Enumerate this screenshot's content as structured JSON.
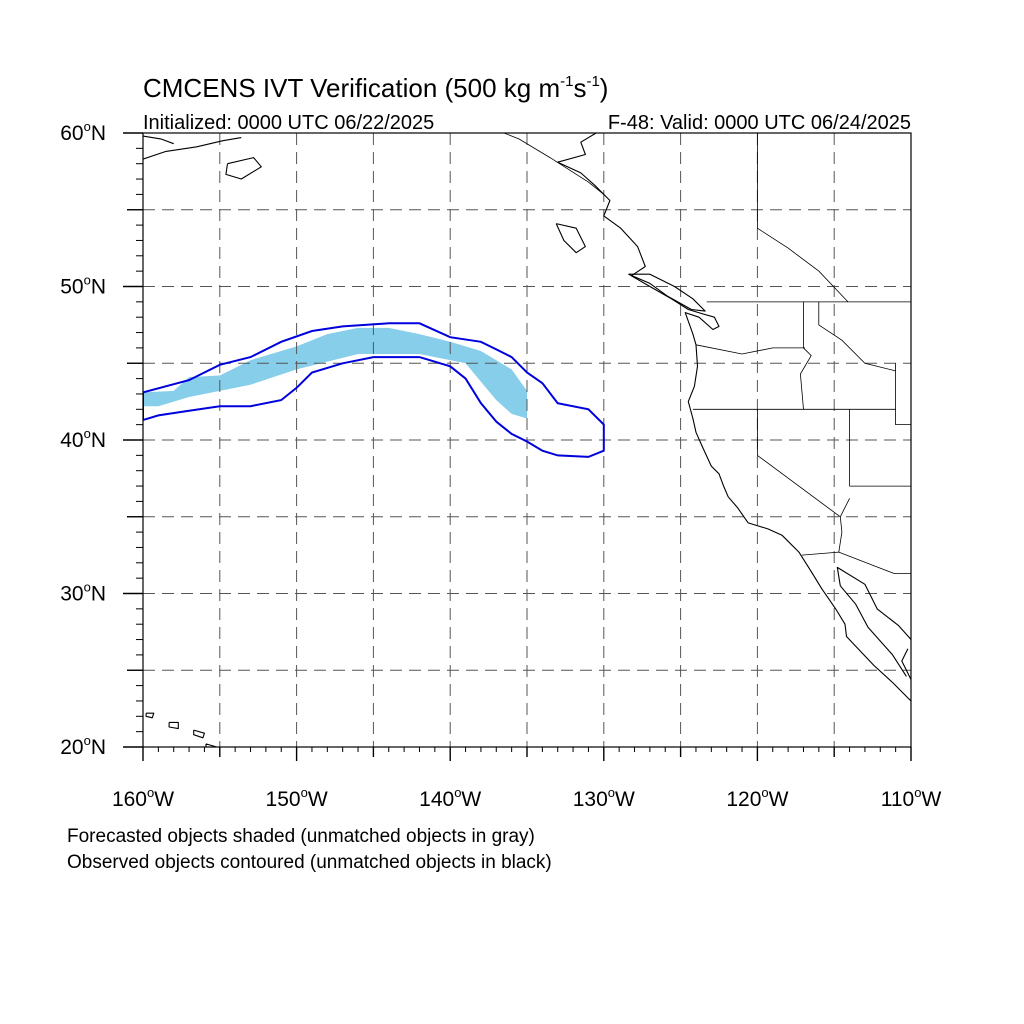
{
  "title": {
    "main": "CMCENS IVT Verification (500 kg m",
    "exp1": "-1",
    "mid": "s",
    "exp2": "-1",
    "close": ")"
  },
  "subtitle": {
    "left": "Initialized: 0000 UTC 06/22/2025",
    "right": "F-48: Valid: 0000 UTC 06/24/2025"
  },
  "notes": [
    "Forecasted objects shaded (unmatched objects in gray)",
    "Observed objects contoured (unmatched objects in black)"
  ],
  "map": {
    "lon_range": [
      -160,
      -110
    ],
    "lat_range": [
      20,
      60
    ],
    "grid_spacing_deg": 5,
    "grid_style": "dashed",
    "x_ticks": [
      {
        "lon": -160,
        "label": "160",
        "suffix": "W"
      },
      {
        "lon": -150,
        "label": "150",
        "suffix": "W"
      },
      {
        "lon": -140,
        "label": "140",
        "suffix": "W"
      },
      {
        "lon": -130,
        "label": "130",
        "suffix": "W"
      },
      {
        "lon": -120,
        "label": "120",
        "suffix": "W"
      },
      {
        "lon": -110,
        "label": "110",
        "suffix": "W"
      }
    ],
    "y_ticks": [
      {
        "lat": 60,
        "label": "60",
        "suffix": "N"
      },
      {
        "lat": 50,
        "label": "50",
        "suffix": "N"
      },
      {
        "lat": 40,
        "label": "40",
        "suffix": "N"
      },
      {
        "lat": 30,
        "label": "30",
        "suffix": "N"
      },
      {
        "lat": 20,
        "label": "20",
        "suffix": "N"
      }
    ],
    "colors": {
      "forecast_fill": "#87ceeb",
      "observed_contour": "#0000dd",
      "coastline": "#000000",
      "grid": "#555555"
    }
  },
  "chart_data": {
    "type": "map",
    "forecast_object": {
      "matched": true,
      "polygon_lonlat": [
        [
          -160,
          42.2
        ],
        [
          -160,
          43.1
        ],
        [
          -158,
          43.2
        ],
        [
          -157,
          44.1
        ],
        [
          -155,
          44.2
        ],
        [
          -153,
          45.2
        ],
        [
          -150,
          46.1
        ],
        [
          -148,
          46.9
        ],
        [
          -146,
          47.3
        ],
        [
          -144,
          47.3
        ],
        [
          -142,
          46.9
        ],
        [
          -140,
          46.4
        ],
        [
          -138,
          45.8
        ],
        [
          -136,
          44.6
        ],
        [
          -135,
          43.2
        ],
        [
          -135,
          41.4
        ],
        [
          -136,
          41.7
        ],
        [
          -137,
          42.6
        ],
        [
          -138,
          43.8
        ],
        [
          -139,
          45.0
        ],
        [
          -142,
          45.6
        ],
        [
          -146,
          45.6
        ],
        [
          -150,
          44.6
        ],
        [
          -153,
          43.6
        ],
        [
          -157,
          42.8
        ],
        [
          -159,
          42.2
        ]
      ]
    },
    "observed_object": {
      "matched": true,
      "polygon_lonlat": [
        [
          -160,
          41.3
        ],
        [
          -160,
          43.1
        ],
        [
          -157,
          43.9
        ],
        [
          -155,
          44.9
        ],
        [
          -153,
          45.4
        ],
        [
          -151,
          46.4
        ],
        [
          -149,
          47.1
        ],
        [
          -147,
          47.4
        ],
        [
          -144,
          47.6
        ],
        [
          -142,
          47.6
        ],
        [
          -140,
          46.7
        ],
        [
          -138,
          46.4
        ],
        [
          -137,
          45.9
        ],
        [
          -136,
          45.4
        ],
        [
          -135,
          44.4
        ],
        [
          -134,
          43.7
        ],
        [
          -133,
          42.4
        ],
        [
          -131,
          42.0
        ],
        [
          -130,
          41.0
        ],
        [
          -130,
          39.3
        ],
        [
          -131,
          38.9
        ],
        [
          -133,
          39.0
        ],
        [
          -134,
          39.3
        ],
        [
          -135,
          39.9
        ],
        [
          -136,
          40.4
        ],
        [
          -137,
          41.2
        ],
        [
          -138,
          42.4
        ],
        [
          -139,
          44.0
        ],
        [
          -140,
          44.8
        ],
        [
          -142,
          45.4
        ],
        [
          -145,
          45.4
        ],
        [
          -147,
          45.0
        ],
        [
          -149,
          44.4
        ],
        [
          -150,
          43.4
        ],
        [
          -151,
          42.6
        ],
        [
          -153,
          42.2
        ],
        [
          -155,
          42.2
        ],
        [
          -157,
          41.9
        ],
        [
          -159,
          41.6
        ]
      ]
    },
    "coastlines": [
      {
        "name": "north-america-west-coast",
        "points_lonlat": [
          [
            -130.5,
            60
          ],
          [
            -131.5,
            59.4
          ],
          [
            -131.2,
            58.6
          ],
          [
            -133.0,
            58.1
          ],
          [
            -131.5,
            57.4
          ],
          [
            -130.6,
            56.6
          ],
          [
            -129.6,
            55.6
          ],
          [
            -130.0,
            54.6
          ],
          [
            -128.9,
            53.8
          ],
          [
            -127.8,
            52.6
          ],
          [
            -127.3,
            51.3
          ],
          [
            -128.2,
            50.7
          ],
          [
            -127.0,
            50.0
          ],
          [
            -125.6,
            49.2
          ],
          [
            -124.5,
            48.5
          ],
          [
            -123.5,
            48.2
          ],
          [
            -122.8,
            48.0
          ],
          [
            -122.5,
            47.4
          ],
          [
            -122.9,
            47.2
          ],
          [
            -123.8,
            48.0
          ],
          [
            -124.7,
            48.3
          ],
          [
            -124.2,
            46.9
          ],
          [
            -124.0,
            46.2
          ],
          [
            -123.9,
            44.8
          ],
          [
            -124.1,
            43.5
          ],
          [
            -124.5,
            42.5
          ],
          [
            -124.2,
            41.4
          ],
          [
            -124.0,
            40.5
          ],
          [
            -123.6,
            39.6
          ],
          [
            -123.0,
            38.3
          ],
          [
            -122.5,
            37.8
          ],
          [
            -122.2,
            37.0
          ],
          [
            -121.9,
            36.3
          ],
          [
            -121.3,
            35.6
          ],
          [
            -120.6,
            34.6
          ],
          [
            -119.3,
            34.2
          ],
          [
            -118.4,
            33.8
          ],
          [
            -117.3,
            32.7
          ],
          [
            -116.6,
            31.6
          ],
          [
            -115.8,
            30.3
          ],
          [
            -114.9,
            29.0
          ],
          [
            -114.3,
            28.0
          ],
          [
            -114.2,
            27.2
          ],
          [
            -112.4,
            25.3
          ],
          [
            -111.2,
            24.2
          ],
          [
            -110.0,
            23.0
          ]
        ]
      },
      {
        "name": "baja-gulf-coast",
        "points_lonlat": [
          [
            -110.0,
            27.0
          ],
          [
            -110.8,
            27.9
          ],
          [
            -112.2,
            29.0
          ],
          [
            -113.0,
            30.6
          ],
          [
            -114.8,
            31.7
          ],
          [
            -114.6,
            30.5
          ],
          [
            -113.6,
            29.3
          ],
          [
            -112.8,
            27.8
          ],
          [
            -111.2,
            26.0
          ],
          [
            -110.3,
            24.6
          ]
        ]
      },
      {
        "name": "mexico-mainland-coast",
        "points_lonlat": [
          [
            -110.0,
            24.4
          ],
          [
            -110.6,
            25.6
          ],
          [
            -110.2,
            26.4
          ]
        ]
      },
      {
        "name": "vancouver-island",
        "points_lonlat": [
          [
            -128.4,
            50.8
          ],
          [
            -127.0,
            50.2
          ],
          [
            -125.9,
            49.4
          ],
          [
            -124.3,
            48.5
          ],
          [
            -123.4,
            48.4
          ],
          [
            -124.2,
            49.2
          ],
          [
            -125.4,
            50.0
          ],
          [
            -127.0,
            50.8
          ],
          [
            -128.4,
            50.8
          ]
        ]
      },
      {
        "name": "haida-gwaii",
        "points_lonlat": [
          [
            -133.1,
            54.1
          ],
          [
            -131.8,
            53.8
          ],
          [
            -131.2,
            52.6
          ],
          [
            -131.8,
            52.2
          ],
          [
            -132.6,
            53.0
          ],
          [
            -133.1,
            54.1
          ]
        ]
      },
      {
        "name": "alaska-south-coast",
        "points_lonlat": [
          [
            -160.0,
            58.3
          ],
          [
            -158.5,
            58.8
          ],
          [
            -156.5,
            59.1
          ],
          [
            -154.8,
            59.5
          ],
          [
            -153.6,
            59.7
          ]
        ]
      },
      {
        "name": "alaska-gulf-coast",
        "points_lonlat": [
          [
            -160.0,
            59.8
          ],
          [
            -158.8,
            59.6
          ],
          [
            -158.0,
            59.3
          ]
        ]
      },
      {
        "name": "kodiak-island",
        "points_lonlat": [
          [
            -154.5,
            58.0
          ],
          [
            -152.8,
            58.4
          ],
          [
            -152.3,
            57.8
          ],
          [
            -153.6,
            57.0
          ],
          [
            -154.6,
            57.3
          ],
          [
            -154.5,
            58.0
          ]
        ]
      },
      {
        "name": "hawaii-big-island",
        "points_lonlat": [
          [
            -155.9,
            20.2
          ],
          [
            -155.2,
            20.0
          ],
          [
            -154.9,
            19.7
          ],
          [
            -155.4,
            19.4
          ],
          [
            -155.9,
            19.6
          ],
          [
            -155.9,
            20.2
          ]
        ]
      },
      {
        "name": "hawaii-oahu-kauai",
        "points_lonlat": [
          [
            -158.3,
            21.6
          ],
          [
            -157.7,
            21.6
          ],
          [
            -157.7,
            21.2
          ],
          [
            -158.3,
            21.3
          ],
          [
            -158.3,
            21.6
          ]
        ]
      },
      {
        "name": "hawaii-maui",
        "points_lonlat": [
          [
            -156.7,
            21.1
          ],
          [
            -156.0,
            20.9
          ],
          [
            -156.1,
            20.6
          ],
          [
            -156.7,
            20.8
          ],
          [
            -156.7,
            21.1
          ]
        ]
      },
      {
        "name": "hawaii-kauai",
        "points_lonlat": [
          [
            -159.8,
            22.2
          ],
          [
            -159.3,
            22.2
          ],
          [
            -159.4,
            21.9
          ],
          [
            -159.8,
            22.0
          ],
          [
            -159.8,
            22.2
          ]
        ]
      }
    ],
    "borders": [
      {
        "name": "us-canada-border",
        "points_lonlat": [
          [
            -123.3,
            49.0
          ],
          [
            -110.0,
            49.0
          ]
        ]
      },
      {
        "name": "alaska-canada-border",
        "points_lonlat": [
          [
            -130.0,
            56.0
          ],
          [
            -131.0,
            56.8
          ],
          [
            -133.5,
            58.4
          ],
          [
            -135.5,
            59.6
          ],
          [
            -136.5,
            60.0
          ]
        ]
      },
      {
        "name": "us-mexico-border",
        "points_lonlat": [
          [
            -117.1,
            32.5
          ],
          [
            -114.7,
            32.7
          ],
          [
            -111.1,
            31.3
          ],
          [
            -110.0,
            31.3
          ]
        ]
      },
      {
        "name": "washington-oregon",
        "points_lonlat": [
          [
            -124.0,
            46.2
          ],
          [
            -121.0,
            45.6
          ],
          [
            -119.0,
            46.0
          ],
          [
            -116.9,
            46.0
          ]
        ]
      },
      {
        "name": "idaho-west",
        "points_lonlat": [
          [
            -117.0,
            49.0
          ],
          [
            -117.0,
            46.0
          ],
          [
            -116.5,
            45.5
          ],
          [
            -117.2,
            44.3
          ],
          [
            -117.0,
            42.0
          ]
        ]
      },
      {
        "name": "oregon-california",
        "points_lonlat": [
          [
            -124.2,
            42.0
          ],
          [
            -111.0,
            42.0
          ]
        ]
      },
      {
        "name": "nevada-california",
        "points_lonlat": [
          [
            -120.0,
            42.0
          ],
          [
            -120.0,
            39.0
          ],
          [
            -114.6,
            35.0
          ]
        ]
      },
      {
        "name": "nevada-utah",
        "points_lonlat": [
          [
            -114.0,
            42.0
          ],
          [
            -114.0,
            37.0
          ]
        ]
      },
      {
        "name": "arizona-utah",
        "points_lonlat": [
          [
            -114.0,
            37.0
          ],
          [
            -110.0,
            37.0
          ]
        ]
      },
      {
        "name": "colorado-river",
        "points_lonlat": [
          [
            -114.0,
            36.2
          ],
          [
            -114.6,
            35.0
          ],
          [
            -114.5,
            34.0
          ],
          [
            -114.7,
            32.7
          ]
        ]
      },
      {
        "name": "idaho-montana",
        "points_lonlat": [
          [
            -116.0,
            49.0
          ],
          [
            -116.0,
            47.5
          ],
          [
            -114.5,
            46.5
          ],
          [
            -113.0,
            45.0
          ],
          [
            -111.0,
            44.5
          ]
        ]
      },
      {
        "name": "wyoming-west",
        "points_lonlat": [
          [
            -111.0,
            45.0
          ],
          [
            -111.0,
            41.0
          ],
          [
            -110.0,
            41.0
          ]
        ]
      },
      {
        "name": "canada-bc-alberta",
        "points_lonlat": [
          [
            -120.0,
            60.0
          ],
          [
            -120.0,
            53.8
          ],
          [
            -118.0,
            52.5
          ],
          [
            -116.0,
            51.0
          ],
          [
            -114.1,
            49.0
          ]
        ]
      }
    ]
  }
}
